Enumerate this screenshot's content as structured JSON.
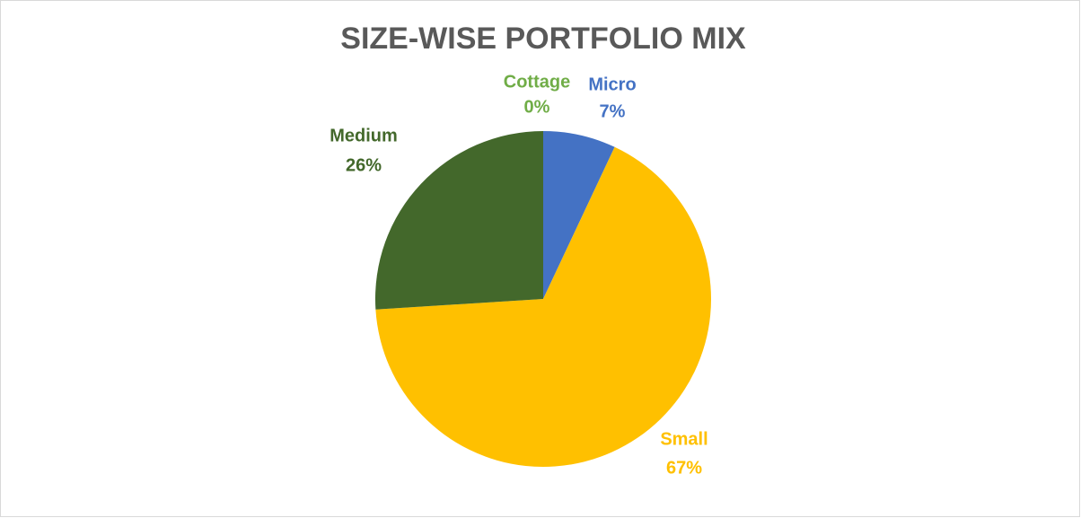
{
  "chart_data": {
    "type": "pie",
    "title": "SIZE-WISE PORTFOLIO MIX",
    "categories": [
      "Cottage",
      "Micro",
      "Small",
      "Medium"
    ],
    "values": [
      0,
      7,
      67,
      26
    ],
    "value_labels": [
      "0%",
      "7%",
      "67%",
      "26%"
    ],
    "colors": [
      "#70ad47",
      "#4472c4",
      "#ffc000",
      "#43682b"
    ]
  }
}
